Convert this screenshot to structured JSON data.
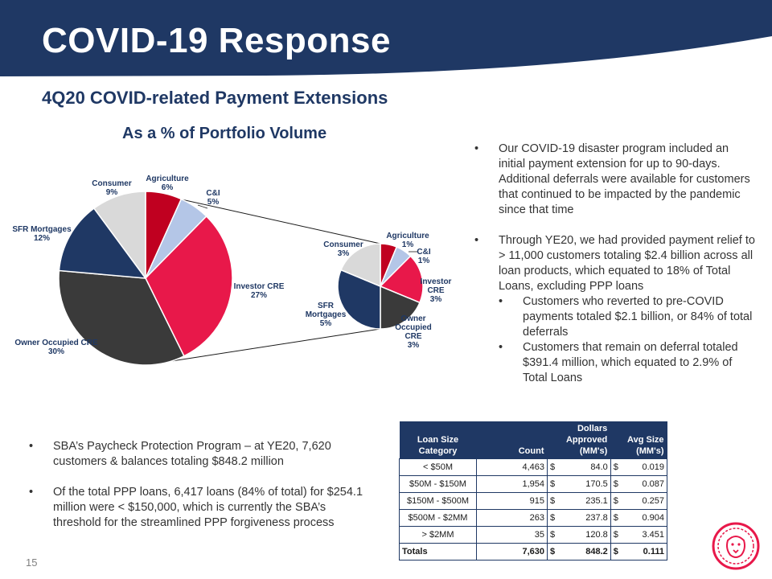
{
  "header": {
    "title": "COVID-19 Response",
    "banner_color": "#1f3864"
  },
  "subtitle": "4Q20 COVID-related Payment Extensions",
  "chart_title": "As a % of Portfolio Volume",
  "chart_data": [
    {
      "type": "pie",
      "title": "As a % of Portfolio Volume",
      "slices": [
        {
          "name": "Agriculture",
          "value": 6,
          "label": "6%",
          "color": "#c00020"
        },
        {
          "name": "C&I",
          "value": 5,
          "label": "5%",
          "color": "#b4c6e7"
        },
        {
          "name": "Investor CRE",
          "value": 27,
          "label": "27%",
          "color": "#e8184a"
        },
        {
          "name": "Owner Occupied CRE",
          "value": 30,
          "label": "30%",
          "color": "#3a3a3a"
        },
        {
          "name": "SFR Mortgages",
          "value": 12,
          "label": "12%",
          "color": "#1f3864"
        },
        {
          "name": "Consumer",
          "value": 9,
          "label": "9%",
          "color": "#d9d9d9"
        }
      ]
    },
    {
      "type": "pie",
      "title": "",
      "slices": [
        {
          "name": "Agriculture",
          "value": 1,
          "label": "1%",
          "color": "#c00020"
        },
        {
          "name": "C&I",
          "value": 1,
          "label": "1%",
          "color": "#b4c6e7"
        },
        {
          "name": "Investor CRE",
          "value": 3,
          "label": "3%",
          "color": "#e8184a"
        },
        {
          "name": "Owner Occupied CRE",
          "value": 3,
          "label": "3%",
          "color": "#3a3a3a"
        },
        {
          "name": "SFR Mortgages",
          "value": 5,
          "label": "5%",
          "color": "#1f3864"
        },
        {
          "name": "Consumer",
          "value": 3,
          "label": "3%",
          "color": "#d9d9d9"
        }
      ]
    }
  ],
  "right_bullets": {
    "b1": "Our COVID-19 disaster program included an initial payment extension for up to 90-days.  Additional deferrals were available for customers that continued to be impacted by the pandemic since that time",
    "b2": "Through YE20, we had provided payment relief to > 11,000 customers totaling $2.4 billion across all loan products, which equated to 18% of Total Loans, excluding PPP loans",
    "s1": "Customers who reverted to pre-COVID payments totaled $2.1 billion, or 84% of total deferrals",
    "s2": "Customers that remain on deferral totaled $391.4 million, which equated to 2.9% of Total Loans"
  },
  "left_bullets": {
    "b1": "SBA’s Paycheck Protection Program – at YE20, 7,620 customers & balances totaling $848.2 million",
    "b2": "Of the total PPP loans, 6,417 loans (84% of total) for $254.1 million were < $150,000, which is currently the SBA’s threshold for the streamlined PPP forgiveness process"
  },
  "bullet_glyph": "•",
  "table": {
    "headers": {
      "category": [
        "Loan Size",
        "Category"
      ],
      "count": "Count",
      "dollars": [
        "Dollars",
        "Approved",
        "(MM's)"
      ],
      "avg": [
        "Avg Size",
        "(MM's)"
      ]
    },
    "currency": "$",
    "rows": [
      {
        "category": "< $50M",
        "count": "4,463",
        "dollars": "84.0",
        "avg": "0.019"
      },
      {
        "category": "$50M - $150M",
        "count": "1,954",
        "dollars": "170.5",
        "avg": "0.087"
      },
      {
        "category": "$150M - $500M",
        "count": "915",
        "dollars": "235.1",
        "avg": "0.257"
      },
      {
        "category": "$500M - $2MM",
        "count": "263",
        "dollars": "237.8",
        "avg": "0.904"
      },
      {
        "category": "> $2MM",
        "count": "35",
        "dollars": "120.8",
        "avg": "3.451"
      }
    ],
    "total": {
      "category": "Totals",
      "count": "7,630",
      "dollars": "848.2",
      "avg": "0.111"
    }
  },
  "page_number": "15",
  "logo": {
    "icon": "lion-head-logo-icon",
    "color": "#e8184a"
  }
}
